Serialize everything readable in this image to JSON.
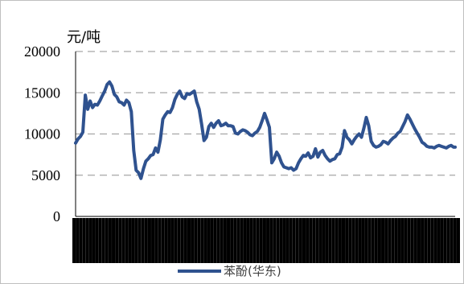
{
  "chart_data": {
    "type": "line",
    "title": "",
    "xlabel": "",
    "ylabel": "元/吨",
    "ylim": [
      0,
      20000
    ],
    "yticks": [
      "20000",
      "15000",
      "10000",
      "5000",
      "0"
    ],
    "grid": true,
    "legend_position": "bottom",
    "series": [
      {
        "name": "苯酚(华东)",
        "color": "#2f528f",
        "x": [
          0,
          3,
          6,
          9,
          12,
          15,
          18,
          21,
          24,
          27,
          30,
          33,
          36,
          39,
          42,
          45,
          48,
          51,
          54,
          57,
          60,
          63,
          66,
          69,
          72,
          75,
          78,
          81,
          84,
          87,
          90,
          93,
          96,
          99,
          102,
          105,
          108,
          111,
          114,
          117,
          120,
          123,
          126,
          129,
          132,
          135,
          138,
          141,
          144,
          147,
          150,
          153,
          156,
          159,
          162,
          165,
          168,
          171,
          174,
          177,
          180,
          183,
          186,
          189,
          192,
          195,
          198,
          201,
          204,
          207,
          210,
          213,
          216,
          219,
          222,
          225,
          228,
          231,
          234,
          237,
          240,
          243,
          246,
          249,
          252,
          255,
          258,
          261,
          264,
          267,
          270,
          273,
          276,
          279,
          282,
          285,
          288,
          291,
          294,
          297,
          300,
          303,
          306,
          309,
          312,
          315,
          318,
          321,
          324,
          327,
          330,
          333,
          336,
          339,
          342,
          345,
          348,
          351,
          354,
          357,
          360,
          363,
          366,
          369,
          372,
          375,
          378,
          381,
          384,
          387,
          390,
          393,
          396,
          399,
          402,
          405,
          408,
          411,
          414,
          417,
          420,
          423,
          426,
          429,
          432,
          435,
          438,
          441,
          444,
          447,
          450,
          453,
          456,
          459,
          462,
          465,
          468,
          470
        ],
        "values": [
          8900,
          9400,
          9700,
          10200,
          14700,
          13000,
          14000,
          13200,
          13600,
          13500,
          14000,
          14600,
          15200,
          16000,
          16300,
          15800,
          14800,
          14500,
          13900,
          13800,
          13500,
          14100,
          13800,
          12700,
          8000,
          5600,
          5300,
          4600,
          5800,
          6700,
          7000,
          7400,
          7500,
          8300,
          7800,
          9300,
          11800,
          12300,
          12700,
          12600,
          13200,
          14200,
          14800,
          15200,
          14500,
          14300,
          14900,
          14800,
          15000,
          15200,
          13900,
          13000,
          11200,
          9200,
          9600,
          10900,
          11300,
          10800,
          11300,
          11600,
          11000,
          11100,
          11300,
          11000,
          11000,
          10900,
          10100,
          10000,
          10300,
          10500,
          10400,
          10200,
          9900,
          9800,
          10100,
          10300,
          10800,
          11600,
          12500,
          11700,
          10800,
          6500,
          7000,
          7800,
          7300,
          6500,
          6000,
          5900,
          5800,
          5900,
          5600,
          5800,
          6500,
          7000,
          7400,
          7300,
          7700,
          7100,
          7300,
          8200,
          7200,
          7800,
          8000,
          7400,
          7000,
          6700,
          6900,
          7000,
          7500,
          7600,
          8400,
          10400,
          9600,
          9300,
          8800,
          9300,
          9700,
          10000,
          9600,
          10700,
          12000,
          11000,
          9100,
          8600,
          8400,
          8500,
          8700,
          9100,
          9000,
          8800,
          9200,
          9500,
          9700,
          10100,
          10300,
          10900,
          11500,
          12300,
          11800,
          11200,
          10600,
          10100,
          9600,
          9000,
          8800,
          8500,
          8400,
          8400,
          8300,
          8500,
          8600,
          8500,
          8400,
          8300,
          8500,
          8600,
          8400,
          8400
        ]
      }
    ]
  }
}
